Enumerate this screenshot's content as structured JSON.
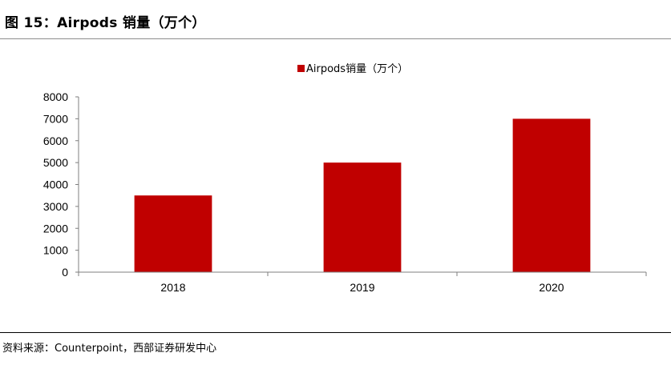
{
  "figure": {
    "title": "图 15：Airpods 销量（万个）",
    "source": "资料来源：Counterpoint，西部证券研发中心"
  },
  "colors": {
    "bar": "#c00000",
    "axis": "#7f7f7f"
  },
  "chart_data": {
    "type": "bar",
    "categories": [
      "2018",
      "2019",
      "2020"
    ],
    "series": [
      {
        "name": "Airpods销量（万个）",
        "values": [
          3500,
          5000,
          7000
        ]
      }
    ],
    "ylim": [
      0,
      8000
    ],
    "yticks": [
      0,
      1000,
      2000,
      3000,
      4000,
      5000,
      6000,
      7000,
      8000
    ],
    "xlabel": "",
    "ylabel": "",
    "legend": "top-center",
    "grid": false
  }
}
